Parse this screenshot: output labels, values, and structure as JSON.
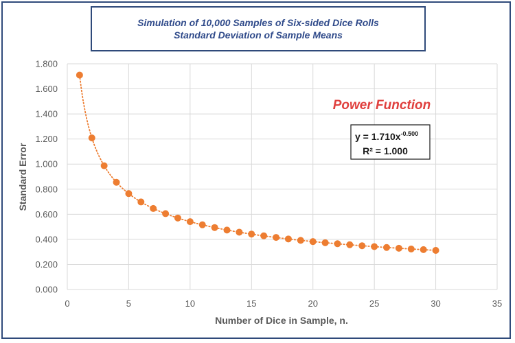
{
  "chart_data": {
    "type": "scatter",
    "title": "Simulation of 10,000 Samples of Six-sided Dice Rolls",
    "subtitle": "Standard Deviation of Sample Means",
    "xlabel": "Number of Dice in Sample, n.",
    "ylabel": "Standard Error",
    "xlim": [
      0,
      35
    ],
    "ylim": [
      0,
      1.8
    ],
    "x_ticks": [
      "0",
      "5",
      "10",
      "15",
      "20",
      "25",
      "30",
      "35"
    ],
    "y_ticks": [
      "0.000",
      "0.200",
      "0.400",
      "0.600",
      "0.800",
      "1.000",
      "1.200",
      "1.400",
      "1.600",
      "1.800"
    ],
    "grid": true,
    "series": [
      {
        "x": [
          1,
          2,
          3,
          4,
          5,
          6,
          7,
          8,
          9,
          10,
          11,
          12,
          13,
          14,
          15,
          16,
          17,
          18,
          19,
          20,
          21,
          22,
          23,
          24,
          25,
          26,
          27,
          28,
          29,
          30
        ],
        "y": [
          1.71,
          1.209,
          0.987,
          0.855,
          0.765,
          0.698,
          0.646,
          0.605,
          0.57,
          0.541,
          0.516,
          0.494,
          0.474,
          0.457,
          0.442,
          0.428,
          0.415,
          0.403,
          0.392,
          0.382,
          0.373,
          0.365,
          0.357,
          0.349,
          0.342,
          0.335,
          0.329,
          0.323,
          0.318,
          0.312
        ],
        "color": "#ed7d31"
      }
    ],
    "trendline": {
      "type": "power",
      "a": 1.71,
      "b": -0.5,
      "style": "dotted",
      "color": "#ed7d31"
    },
    "annotation": "Power Function",
    "equation": {
      "prefix": "y = 1.710x",
      "exponent": "-0.500",
      "r2": "R² = 1.000"
    }
  }
}
